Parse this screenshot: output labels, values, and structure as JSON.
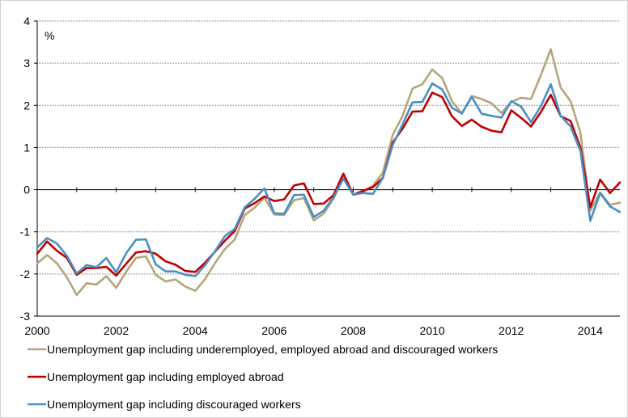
{
  "chart_data": {
    "type": "line",
    "title": "",
    "xlabel": "",
    "ylabel": "%",
    "ylim": [
      -3,
      4
    ],
    "xlim": [
      2000,
      2014.75
    ],
    "y_ticks": [
      "4",
      "3",
      "2",
      "1",
      "0",
      "-1",
      "-2",
      "-3"
    ],
    "y_tick_values": [
      4,
      3,
      2,
      1,
      0,
      -1,
      -2,
      -3
    ],
    "x_ticks": [
      "2000",
      "2002",
      "2004",
      "2006",
      "2008",
      "2010",
      "2012",
      "2014"
    ],
    "x_tick_values": [
      2000,
      2002,
      2004,
      2006,
      2008,
      2010,
      2012,
      2014
    ],
    "grid": "horizontal",
    "legend_position": "bottom",
    "x": [
      2000.0,
      2000.25,
      2000.5,
      2000.75,
      2001.0,
      2001.25,
      2001.5,
      2001.75,
      2002.0,
      2002.25,
      2002.5,
      2002.75,
      2003.0,
      2003.25,
      2003.5,
      2003.75,
      2004.0,
      2004.25,
      2004.5,
      2004.75,
      2005.0,
      2005.25,
      2005.5,
      2005.75,
      2006.0,
      2006.25,
      2006.5,
      2006.75,
      2007.0,
      2007.25,
      2007.5,
      2007.75,
      2008.0,
      2008.25,
      2008.5,
      2008.75,
      2009.0,
      2009.25,
      2009.5,
      2009.75,
      2010.0,
      2010.25,
      2010.5,
      2010.75,
      2011.0,
      2011.25,
      2011.5,
      2011.75,
      2012.0,
      2012.25,
      2012.5,
      2012.75,
      2013.0,
      2013.25,
      2013.5,
      2013.75,
      2014.0,
      2014.25,
      2014.5,
      2014.75
    ],
    "series": [
      {
        "name": "Unemployment gap including underemployed, employed abroad and discouraged workers",
        "color": "#b5a57a",
        "values": [
          -1.75,
          -1.55,
          -1.75,
          -2.08,
          -2.5,
          -2.22,
          -2.25,
          -2.05,
          -2.33,
          -1.95,
          -1.62,
          -1.58,
          -2.02,
          -2.18,
          -2.13,
          -2.3,
          -2.4,
          -2.12,
          -1.74,
          -1.41,
          -1.18,
          -0.6,
          -0.43,
          -0.19,
          -0.59,
          -0.6,
          -0.25,
          -0.2,
          -0.73,
          -0.57,
          -0.22,
          0.3,
          -0.12,
          -0.05,
          0.1,
          0.4,
          1.3,
          1.75,
          2.4,
          2.5,
          2.85,
          2.65,
          2.1,
          1.8,
          2.22,
          2.15,
          2.05,
          1.82,
          2.08,
          2.18,
          2.15,
          2.72,
          3.33,
          2.42,
          2.1,
          1.35,
          -0.5,
          -0.07,
          -0.36,
          -0.31
        ]
      },
      {
        "name": "Unemployment gap including employed abroad",
        "color": "#c00000",
        "values": [
          -1.52,
          -1.23,
          -1.45,
          -1.62,
          -2.02,
          -1.86,
          -1.86,
          -1.83,
          -2.04,
          -1.76,
          -1.49,
          -1.46,
          -1.52,
          -1.7,
          -1.78,
          -1.93,
          -1.95,
          -1.73,
          -1.47,
          -1.21,
          -0.98,
          -0.45,
          -0.32,
          -0.16,
          -0.27,
          -0.23,
          0.1,
          0.15,
          -0.34,
          -0.33,
          -0.13,
          0.38,
          -0.12,
          -0.03,
          0.06,
          0.28,
          1.12,
          1.45,
          1.85,
          1.86,
          2.3,
          2.2,
          1.74,
          1.51,
          1.66,
          1.49,
          1.4,
          1.36,
          1.88,
          1.7,
          1.5,
          1.84,
          2.25,
          1.74,
          1.63,
          1.0,
          -0.42,
          0.24,
          -0.08,
          0.17
        ]
      },
      {
        "name": "Unemployment gap including discouraged workers",
        "color": "#4a8fc4",
        "values": [
          -1.37,
          -1.15,
          -1.28,
          -1.57,
          -1.99,
          -1.79,
          -1.84,
          -1.62,
          -1.96,
          -1.51,
          -1.19,
          -1.18,
          -1.77,
          -1.94,
          -1.94,
          -2.02,
          -2.05,
          -1.79,
          -1.46,
          -1.1,
          -0.93,
          -0.42,
          -0.22,
          0.03,
          -0.56,
          -0.57,
          -0.13,
          -0.12,
          -0.65,
          -0.5,
          -0.18,
          0.26,
          -0.12,
          -0.08,
          -0.1,
          0.28,
          1.06,
          1.55,
          2.07,
          2.08,
          2.52,
          2.38,
          1.94,
          1.81,
          2.2,
          1.8,
          1.75,
          1.71,
          2.1,
          1.97,
          1.6,
          1.98,
          2.5,
          1.75,
          1.5,
          0.92,
          -0.74,
          -0.08,
          -0.4,
          -0.53
        ]
      }
    ]
  }
}
